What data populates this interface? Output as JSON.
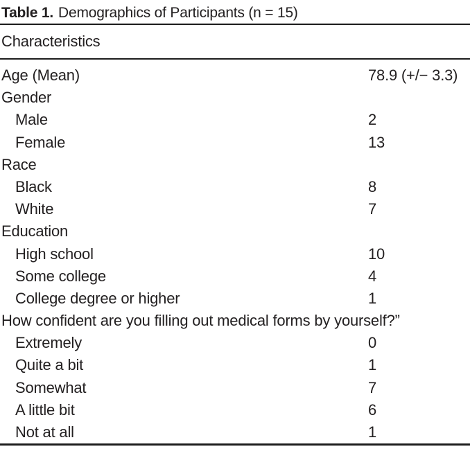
{
  "table": {
    "title_bold": "Table 1.",
    "title_rest": "Demographics of Participants (n = 15)",
    "header": "Characteristics",
    "ink_color": "#232021",
    "rule_color": "#1c1c1c",
    "rows": [
      {
        "label": "Age (Mean)",
        "value": "78.9 (+/− 3.3)",
        "indent": 0
      },
      {
        "label": "Gender",
        "value": "",
        "indent": 0
      },
      {
        "label": "Male",
        "value": "2",
        "indent": 1
      },
      {
        "label": "Female",
        "value": "13",
        "indent": 1
      },
      {
        "label": "Race",
        "value": "",
        "indent": 0
      },
      {
        "label": "Black",
        "value": "8",
        "indent": 1
      },
      {
        "label": "White",
        "value": "7",
        "indent": 1
      },
      {
        "label": "Education",
        "value": "",
        "indent": 0
      },
      {
        "label": "High school",
        "value": "10",
        "indent": 1
      },
      {
        "label": "Some college",
        "value": "4",
        "indent": 1
      },
      {
        "label": "College degree or higher",
        "value": "1",
        "indent": 1
      },
      {
        "label": "How confident are you filling out medical forms by yourself?”",
        "value": "",
        "indent": 0
      },
      {
        "label": "Extremely",
        "value": "0",
        "indent": 1
      },
      {
        "label": "Quite a bit",
        "value": "1",
        "indent": 1
      },
      {
        "label": "Somewhat",
        "value": "7",
        "indent": 1
      },
      {
        "label": "A little bit",
        "value": "6",
        "indent": 1
      },
      {
        "label": "Not at all",
        "value": "1",
        "indent": 1
      }
    ]
  }
}
